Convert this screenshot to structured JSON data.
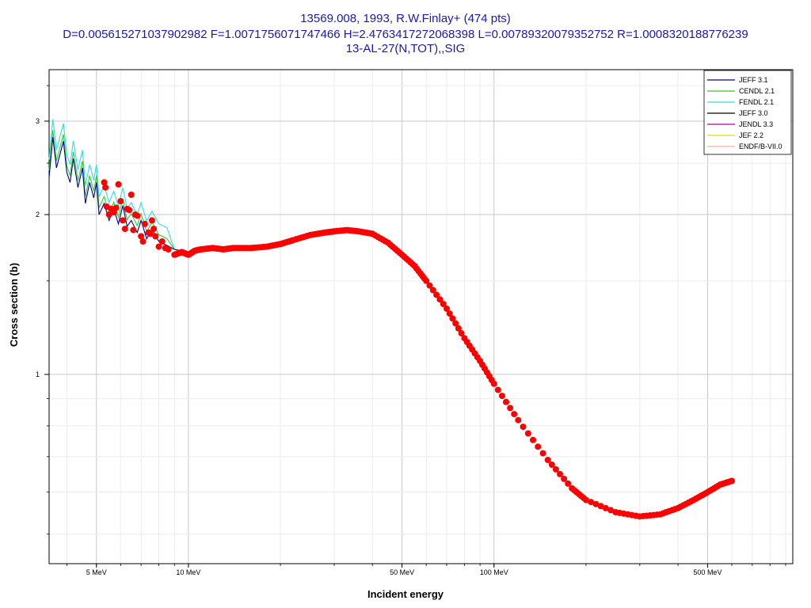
{
  "chart_data": {
    "type": "line",
    "title_lines": [
      "13569.008, 1993, R.W.Finlay+ (474 pts)",
      "D=0.005615271037902982 F=1.0071756071747466 H=2.4763417272068398 L=0.00789320079352752 R=1.0008320188776239",
      "13-AL-27(N,TOT),,SIG"
    ],
    "xlabel": "Incident energy",
    "ylabel": "Cross section (b)",
    "xscale": "log",
    "yscale": "log",
    "xlim_mev": [
      3.5,
      950
    ],
    "ylim_b": [
      0.44,
      3.75
    ],
    "x_ticks": [
      {
        "value": 5,
        "label": "5 MeV"
      },
      {
        "value": 10,
        "label": "10 MeV"
      },
      {
        "value": 50,
        "label": "50 MeV"
      },
      {
        "value": 100,
        "label": "100 MeV"
      },
      {
        "value": 500,
        "label": "500 MeV"
      }
    ],
    "y_ticks": [
      {
        "value": 1,
        "label": "1"
      },
      {
        "value": 2,
        "label": "2"
      },
      {
        "value": 3,
        "label": "3"
      }
    ],
    "grid": true,
    "legend_position": "top-right",
    "legend": [
      {
        "name": "JEFF 3.1",
        "color": "#00008b"
      },
      {
        "name": "CENDL 2.1",
        "color": "#33cc33"
      },
      {
        "name": "FENDL 2.1",
        "color": "#33dddd"
      },
      {
        "name": "JEFF 3.0",
        "color": "#000000"
      },
      {
        "name": "JENDL 3.3",
        "color": "#aa00aa"
      },
      {
        "name": "JEF 2.2",
        "color": "#dddd00"
      },
      {
        "name": "ENDF/B-VII.0",
        "color": "#ffaaaa"
      }
    ],
    "evaluated_curve": {
      "color": "#00008b",
      "points": [
        [
          3.5,
          2.35
        ],
        [
          3.6,
          2.8
        ],
        [
          3.7,
          2.45
        ],
        [
          3.8,
          2.6
        ],
        [
          3.9,
          2.75
        ],
        [
          4.0,
          2.4
        ],
        [
          4.1,
          2.3
        ],
        [
          4.2,
          2.55
        ],
        [
          4.35,
          2.25
        ],
        [
          4.5,
          2.45
        ],
        [
          4.6,
          2.1
        ],
        [
          4.75,
          2.3
        ],
        [
          4.9,
          2.15
        ],
        [
          5.0,
          2.3
        ],
        [
          5.1,
          2.0
        ],
        [
          5.3,
          2.1
        ],
        [
          5.5,
          1.95
        ],
        [
          5.7,
          2.05
        ],
        [
          5.9,
          1.92
        ],
        [
          6.1,
          2.08
        ],
        [
          6.3,
          1.9
        ],
        [
          6.5,
          1.95
        ],
        [
          6.8,
          1.85
        ],
        [
          7.0,
          1.95
        ],
        [
          7.3,
          1.8
        ],
        [
          7.6,
          1.88
        ],
        [
          8.0,
          1.78
        ],
        [
          8.5,
          1.75
        ],
        [
          9.0,
          1.72
        ],
        [
          10.0,
          1.7
        ],
        [
          12.0,
          1.72
        ],
        [
          15.0,
          1.73
        ],
        [
          18.0,
          1.75
        ],
        [
          20.0,
          1.78
        ]
      ]
    },
    "experimental": {
      "color": "#ff0000",
      "points": [
        [
          5.3,
          2.3
        ],
        [
          5.35,
          2.25
        ],
        [
          5.4,
          2.07
        ],
        [
          5.5,
          2.0
        ],
        [
          5.6,
          2.05
        ],
        [
          5.7,
          2.02
        ],
        [
          5.8,
          2.06
        ],
        [
          5.9,
          2.28
        ],
        [
          6.0,
          2.12
        ],
        [
          6.1,
          1.95
        ],
        [
          6.2,
          1.88
        ],
        [
          6.3,
          2.05
        ],
        [
          6.4,
          2.04
        ],
        [
          6.5,
          2.18
        ],
        [
          6.6,
          1.87
        ],
        [
          6.7,
          2.0
        ],
        [
          6.8,
          1.99
        ],
        [
          7.0,
          1.82
        ],
        [
          7.1,
          1.78
        ],
        [
          7.2,
          1.92
        ],
        [
          7.4,
          1.85
        ],
        [
          7.5,
          1.84
        ],
        [
          7.6,
          1.95
        ],
        [
          7.7,
          1.88
        ],
        [
          7.8,
          1.82
        ],
        [
          8.0,
          1.74
        ],
        [
          8.2,
          1.78
        ],
        [
          8.4,
          1.73
        ],
        [
          8.6,
          1.72
        ],
        [
          9.0,
          1.68
        ],
        [
          9.5,
          1.7
        ],
        [
          10.0,
          1.68
        ],
        [
          10.5,
          1.71
        ],
        [
          11.0,
          1.72
        ],
        [
          12.0,
          1.73
        ],
        [
          13.0,
          1.72
        ],
        [
          14.0,
          1.73
        ],
        [
          16.0,
          1.73
        ],
        [
          18.0,
          1.74
        ],
        [
          20.0,
          1.76
        ],
        [
          22.0,
          1.79
        ],
        [
          25.0,
          1.83
        ],
        [
          28.0,
          1.85
        ],
        [
          30.0,
          1.86
        ],
        [
          33.0,
          1.87
        ],
        [
          36.0,
          1.86
        ],
        [
          40.0,
          1.84
        ],
        [
          45.0,
          1.77
        ],
        [
          50.0,
          1.68
        ],
        [
          55.0,
          1.6
        ],
        [
          60.0,
          1.5
        ],
        [
          70.0,
          1.33
        ],
        [
          80.0,
          1.17
        ],
        [
          90.0,
          1.06
        ],
        [
          100.0,
          0.96
        ],
        [
          120.0,
          0.82
        ],
        [
          150.0,
          0.69
        ],
        [
          180.0,
          0.61
        ],
        [
          200.0,
          0.58
        ],
        [
          250.0,
          0.55
        ],
        [
          300.0,
          0.54
        ],
        [
          350.0,
          0.545
        ],
        [
          400.0,
          0.56
        ],
        [
          450.0,
          0.58
        ],
        [
          500.0,
          0.6
        ],
        [
          550.0,
          0.62
        ],
        [
          600.0,
          0.63
        ]
      ]
    }
  }
}
